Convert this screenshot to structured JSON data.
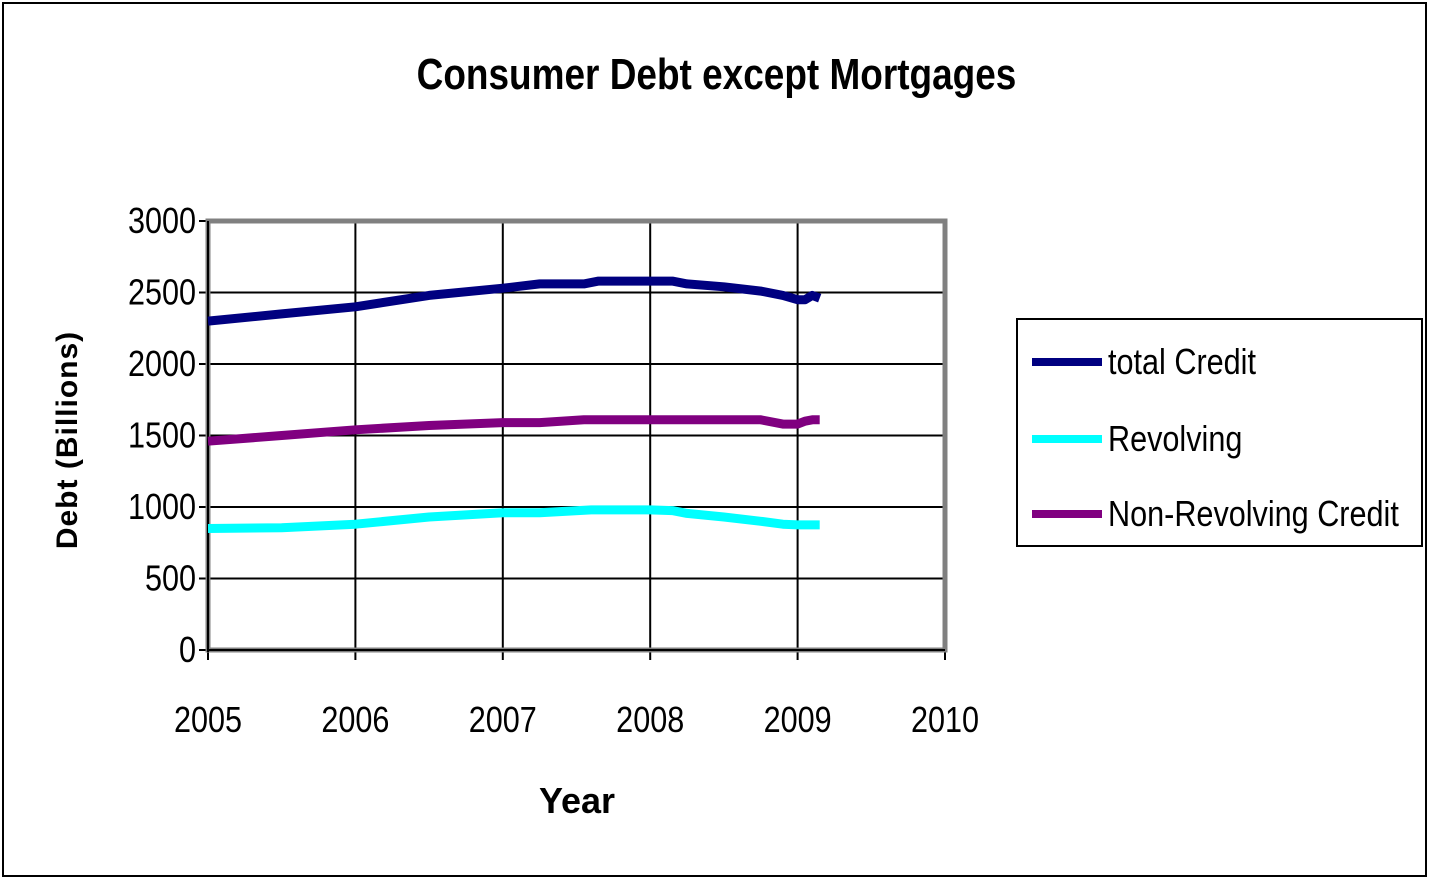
{
  "chart_data": {
    "type": "line",
    "title": "Consumer Debt except Mortgages",
    "xlabel": "Year",
    "ylabel": "Debt (Billions)",
    "xlim": [
      2005,
      2010
    ],
    "ylim": [
      0,
      3000
    ],
    "x_ticks": [
      "2005",
      "2006",
      "2007",
      "2008",
      "2009",
      "2010"
    ],
    "y_ticks": [
      "0",
      "500",
      "1000",
      "1500",
      "2000",
      "2500",
      "3000"
    ],
    "grid": true,
    "legend_position": "right",
    "series": [
      {
        "name": "total Credit",
        "color": "#000080",
        "x": [
          2005.0,
          2005.5,
          2006.0,
          2006.5,
          2007.0,
          2007.25,
          2007.55,
          2007.65,
          2008.0,
          2008.15,
          2008.25,
          2008.5,
          2008.75,
          2008.9,
          2009.0,
          2009.05,
          2009.1,
          2009.15
        ],
        "y": [
          2300,
          2350,
          2400,
          2480,
          2530,
          2560,
          2560,
          2580,
          2580,
          2580,
          2560,
          2540,
          2510,
          2480,
          2450,
          2450,
          2480,
          2460
        ]
      },
      {
        "name": "Revolving",
        "color": "#00FFFF",
        "x": [
          2005.0,
          2005.5,
          2006.0,
          2006.5,
          2007.0,
          2007.25,
          2007.6,
          2008.0,
          2008.15,
          2008.25,
          2008.5,
          2008.75,
          2008.9,
          2009.0,
          2009.15
        ],
        "y": [
          850,
          855,
          880,
          930,
          960,
          960,
          980,
          980,
          975,
          955,
          930,
          900,
          880,
          875,
          875
        ]
      },
      {
        "name": "Non-Revolving Credit",
        "color": "#800080",
        "x": [
          2005.0,
          2005.5,
          2006.0,
          2006.5,
          2007.0,
          2007.25,
          2007.55,
          2008.0,
          2008.25,
          2008.5,
          2008.75,
          2008.9,
          2009.0,
          2009.05,
          2009.1,
          2009.15
        ],
        "y": [
          1460,
          1500,
          1540,
          1570,
          1590,
          1590,
          1610,
          1610,
          1610,
          1610,
          1610,
          1580,
          1580,
          1600,
          1610,
          1610
        ]
      }
    ]
  }
}
